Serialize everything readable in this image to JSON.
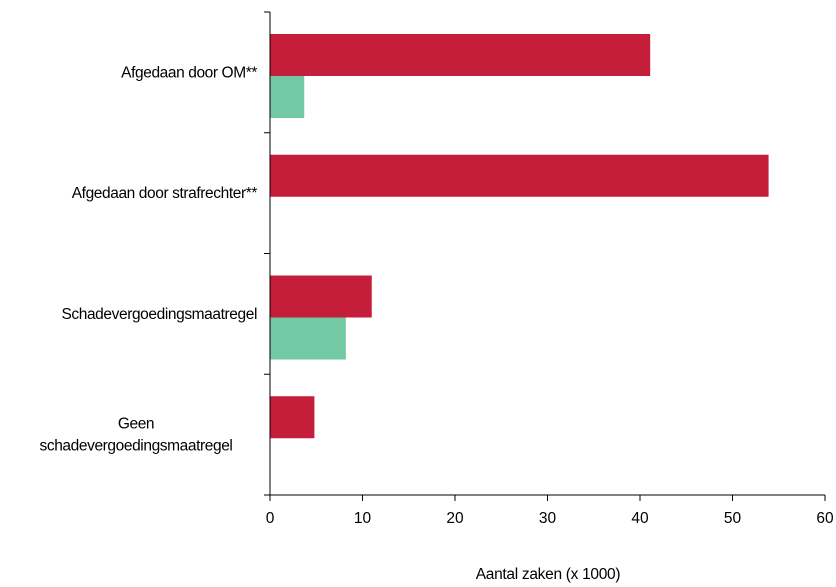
{
  "chart_data": {
    "type": "bar",
    "orientation": "horizontal",
    "title": "",
    "xlabel": "Aantal zaken (x 1000)",
    "ylabel": "",
    "xlim": [
      0,
      60
    ],
    "xticks": [
      "0",
      "10",
      "20",
      "30",
      "40",
      "50",
      "60"
    ],
    "grid": false,
    "legend": "none",
    "categories": [
      [
        "Afgedaan door OM**"
      ],
      [
        "Afgedaan door strafrechter**"
      ],
      [
        "Schadevergoedingsmaatregel"
      ],
      [
        "Geen",
        "schadevergoedingsmaatregel"
      ]
    ],
    "series": [
      {
        "color": "#c41e3a",
        "values": [
          41.1,
          53.9,
          11.0,
          4.8
        ]
      },
      {
        "color": "#72c9a4",
        "values": [
          3.7,
          0,
          8.2,
          0
        ]
      }
    ]
  }
}
